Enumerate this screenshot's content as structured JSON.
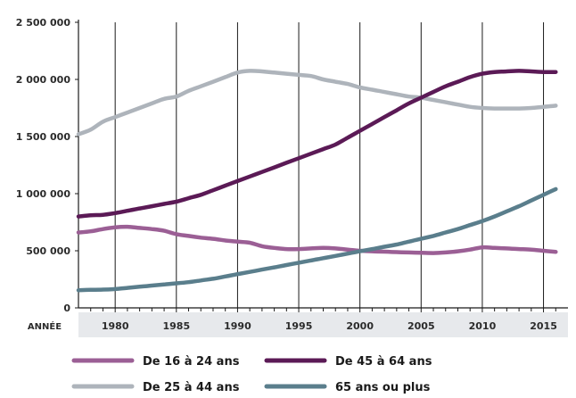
{
  "chart_data": {
    "type": "line",
    "xlabel": "ANNÉE",
    "x_ticks": [
      "1980",
      "1985",
      "1990",
      "1995",
      "2000",
      "2005",
      "2010",
      "2015"
    ],
    "y_ticks": [
      "0",
      "500 000",
      "1 000 000",
      "1 500 000",
      "2 000 000",
      "2 500 000"
    ],
    "xlim": [
      1977,
      2017
    ],
    "ylim": [
      0,
      2500000
    ],
    "grid": "vertical",
    "legend_position": "bottom",
    "x": [
      1977,
      1978,
      1979,
      1980,
      1981,
      1982,
      1983,
      1984,
      1985,
      1986,
      1987,
      1988,
      1989,
      1990,
      1991,
      1992,
      1993,
      1994,
      1995,
      1996,
      1997,
      1998,
      1999,
      2000,
      2001,
      2002,
      2003,
      2004,
      2005,
      2006,
      2007,
      2008,
      2009,
      2010,
      2011,
      2012,
      2013,
      2014,
      2015,
      2016
    ],
    "series": [
      {
        "name": "De 16 à 24 ans",
        "color": "#9b5f95",
        "values": [
          660000,
          670000,
          690000,
          705000,
          710000,
          700000,
          690000,
          675000,
          645000,
          630000,
          615000,
          605000,
          590000,
          580000,
          570000,
          540000,
          525000,
          515000,
          515000,
          520000,
          525000,
          520000,
          510000,
          500000,
          495000,
          492000,
          488000,
          485000,
          482000,
          480000,
          485000,
          495000,
          510000,
          530000,
          525000,
          520000,
          515000,
          510000,
          500000,
          490000
        ]
      },
      {
        "name": "De 25 à 44 ans",
        "color": "#aeb4bb",
        "values": [
          1520000,
          1560000,
          1630000,
          1670000,
          1710000,
          1750000,
          1790000,
          1830000,
          1850000,
          1900000,
          1940000,
          1980000,
          2020000,
          2060000,
          2075000,
          2070000,
          2060000,
          2050000,
          2040000,
          2030000,
          2000000,
          1980000,
          1960000,
          1930000,
          1910000,
          1890000,
          1870000,
          1850000,
          1840000,
          1820000,
          1800000,
          1780000,
          1760000,
          1750000,
          1745000,
          1745000,
          1745000,
          1750000,
          1760000,
          1770000
        ]
      },
      {
        "name": "De 45 à 64 ans",
        "color": "#5b1a56",
        "values": [
          800000,
          810000,
          815000,
          830000,
          850000,
          870000,
          890000,
          910000,
          930000,
          960000,
          990000,
          1030000,
          1070000,
          1110000,
          1150000,
          1190000,
          1230000,
          1270000,
          1310000,
          1350000,
          1390000,
          1430000,
          1490000,
          1550000,
          1610000,
          1670000,
          1730000,
          1790000,
          1840000,
          1890000,
          1940000,
          1980000,
          2020000,
          2050000,
          2065000,
          2070000,
          2075000,
          2070000,
          2065000,
          2065000
        ]
      },
      {
        "name": "65 ans ou plus",
        "color": "#5a7e8c",
        "values": [
          155000,
          158000,
          160000,
          165000,
          175000,
          185000,
          195000,
          205000,
          215000,
          225000,
          240000,
          255000,
          275000,
          295000,
          315000,
          335000,
          355000,
          375000,
          395000,
          415000,
          435000,
          455000,
          475000,
          495000,
          515000,
          535000,
          555000,
          580000,
          605000,
          630000,
          660000,
          690000,
          725000,
          760000,
          800000,
          845000,
          890000,
          940000,
          990000,
          1040000
        ]
      }
    ]
  }
}
